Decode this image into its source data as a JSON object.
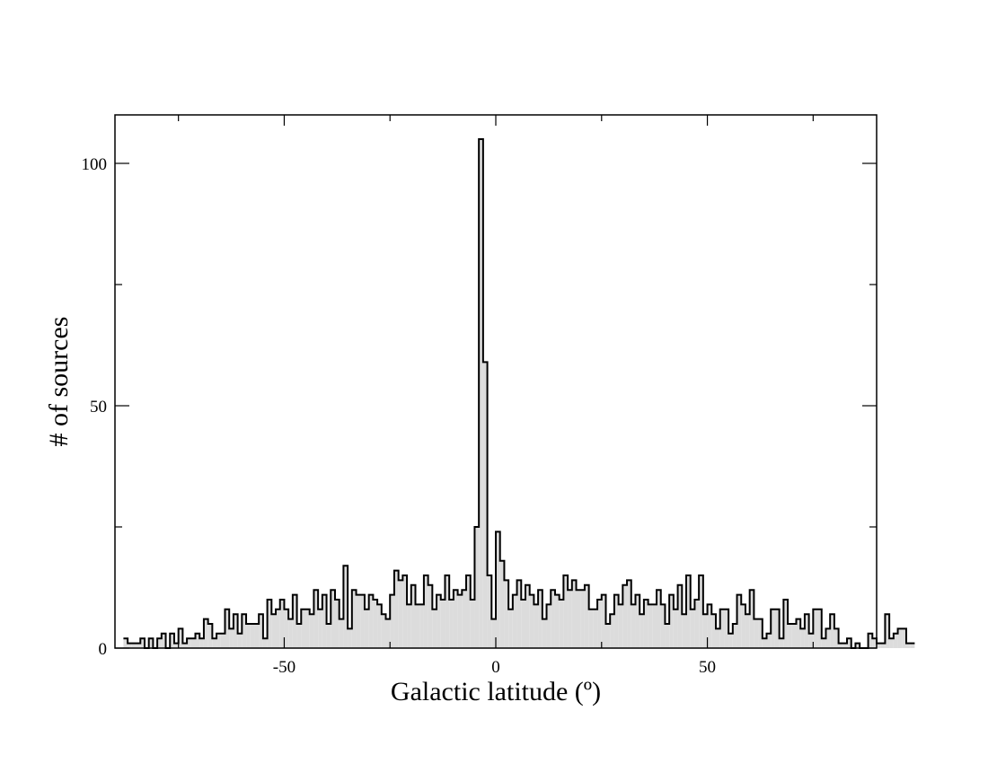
{
  "chart_data": {
    "type": "histogram",
    "xlabel": "Galactic latitude (º)",
    "ylabel": "# of sources",
    "xlim": [
      -90,
      90
    ],
    "ylim": [
      0,
      110
    ],
    "x_ticks": [
      -50,
      0,
      50
    ],
    "x_tick_labels": [
      "-50",
      "0",
      "50"
    ],
    "y_ticks": [
      0,
      50,
      100
    ],
    "y_tick_labels": [
      "0",
      "50",
      "100"
    ],
    "bin_width": 1,
    "bin_start": -88,
    "counts": [
      2,
      1,
      1,
      1,
      2,
      0,
      2,
      0,
      2,
      3,
      0,
      3,
      1,
      4,
      1,
      2,
      2,
      3,
      2,
      6,
      5,
      2,
      3,
      3,
      8,
      4,
      7,
      3,
      7,
      5,
      5,
      5,
      7,
      2,
      10,
      7,
      8,
      10,
      8,
      6,
      11,
      5,
      8,
      8,
      7,
      12,
      8,
      11,
      5,
      12,
      10,
      6,
      17,
      4,
      12,
      11,
      11,
      8,
      11,
      10,
      9,
      7,
      6,
      11,
      16,
      14,
      15,
      9,
      13,
      9,
      9,
      15,
      13,
      8,
      11,
      10,
      15,
      10,
      12,
      11,
      12,
      15,
      10,
      25,
      105,
      59,
      15,
      6,
      24,
      18,
      14,
      8,
      11,
      14,
      10,
      13,
      11,
      9,
      12,
      6,
      9,
      12,
      11,
      10,
      15,
      12,
      14,
      12,
      12,
      13,
      8,
      8,
      10,
      11,
      5,
      7,
      11,
      9,
      13,
      14,
      9,
      11,
      7,
      10,
      9,
      9,
      12,
      9,
      5,
      11,
      8,
      13,
      7,
      15,
      8,
      10,
      15,
      7,
      9,
      7,
      4,
      8,
      8,
      3,
      5,
      11,
      9,
      7,
      12,
      6,
      6,
      2,
      3,
      8,
      8,
      2,
      10,
      5,
      5,
      6,
      4,
      7,
      3,
      8,
      8,
      2,
      4,
      7,
      4,
      1,
      1,
      2,
      0,
      1,
      0,
      0,
      3,
      2,
      1,
      1,
      7,
      2,
      3,
      4,
      4,
      1,
      1
    ],
    "fill_color": "#dcdcdc",
    "stroke_color": "#000000",
    "grid": false,
    "legend": "none"
  }
}
